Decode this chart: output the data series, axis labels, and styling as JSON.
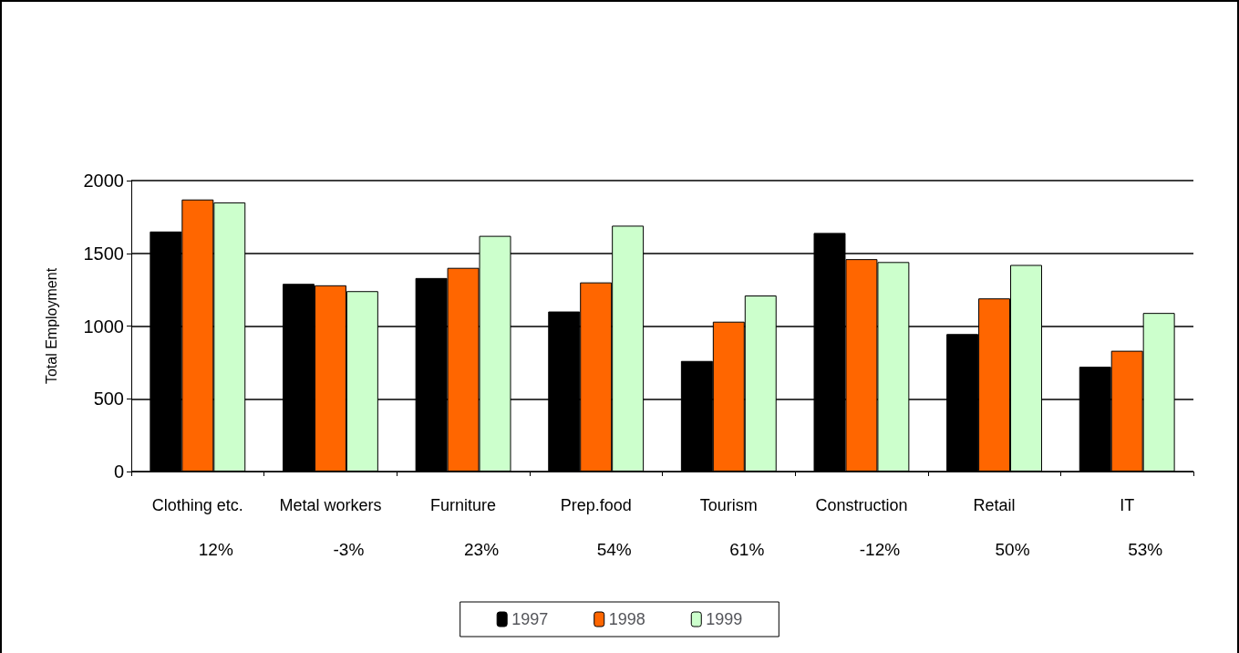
{
  "chart_data": {
    "type": "bar",
    "ylabel": "Total Employment",
    "categories": [
      "Clothing etc.",
      "Metal workers",
      "Furniture",
      "Prep.food",
      "Tourism",
      "Construction",
      "Retail",
      "IT"
    ],
    "series": [
      {
        "name": "1997",
        "color": "#000000",
        "values": [
          1650,
          1290,
          1330,
          1100,
          760,
          1640,
          945,
          720
        ]
      },
      {
        "name": "1998",
        "color": "#ff6600",
        "values": [
          1870,
          1280,
          1400,
          1300,
          1030,
          1460,
          1190,
          830
        ]
      },
      {
        "name": "1999",
        "color": "#ccffcc",
        "values": [
          1850,
          1240,
          1620,
          1690,
          1210,
          1440,
          1420,
          1090
        ]
      }
    ],
    "annotations": [
      "12%",
      "-3%",
      "23%",
      "54%",
      "61%",
      "-12%",
      "50%",
      "53%"
    ],
    "ylim": [
      0,
      2000
    ],
    "yticks": [
      0,
      500,
      1000,
      1500,
      2000
    ],
    "grid": "y",
    "legend": "bottom"
  }
}
